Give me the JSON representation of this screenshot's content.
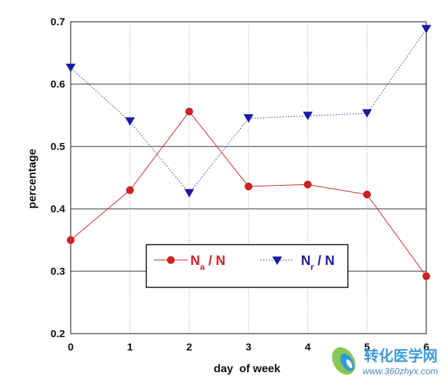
{
  "chart_data": {
    "type": "line",
    "xlabel": "day  of week",
    "ylabel": "percentage",
    "x": [
      0,
      1,
      2,
      3,
      4,
      5,
      6
    ],
    "xlim": [
      0,
      6
    ],
    "ylim": [
      0.2,
      0.7
    ],
    "x_ticks": [
      "0",
      "1",
      "2",
      "3",
      "4",
      "5",
      "6"
    ],
    "y_ticks": [
      "0.2",
      "0.3",
      "0.4",
      "0.5",
      "0.6",
      "0.7"
    ],
    "grid": "horizontal solid, vertical dotted",
    "legend_position": "lower-center",
    "series": [
      {
        "name": "Na / N",
        "legend_main": "N",
        "legend_sub": "a",
        "legend_rest": " / N",
        "values": [
          0.35,
          0.43,
          0.556,
          0.436,
          0.439,
          0.423,
          0.292
        ],
        "color": "#cc2222",
        "marker": "circle",
        "line_style": "solid"
      },
      {
        "name": "Nr / N",
        "legend_main": "N",
        "legend_sub": "r",
        "legend_rest": " / N",
        "values": [
          0.626,
          0.54,
          0.425,
          0.545,
          0.549,
          0.553,
          0.688
        ],
        "color": "#1a1aa8",
        "marker": "triangle-down",
        "line_style": "dotted"
      }
    ]
  },
  "watermark": {
    "text": "转化医学网",
    "url": "www.360zhyx.com",
    "icon": "leaf-logo-icon"
  }
}
